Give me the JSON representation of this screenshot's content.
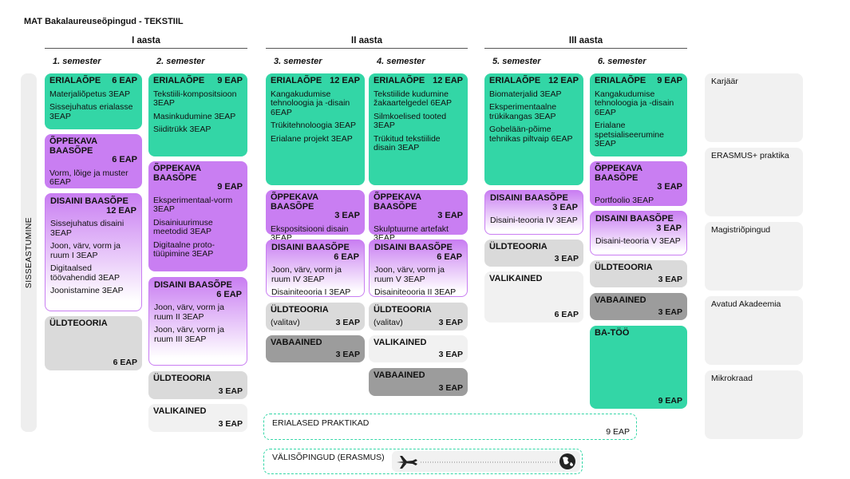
{
  "title": "MAT Bakalaureuseõpingud - TEKSTIIL",
  "admission": "SISSEASTUMINE",
  "years": [
    {
      "label": "I aasta",
      "semesters": [
        {
          "label": "1. semester",
          "blocks": [
            {
              "heading": "ERIALAÕPE",
              "eap": "6 EAP",
              "color": "#33d6a6",
              "items": [
                "Materjaliõpetus 3EAP",
                "Sissejuhatus erialasse 3EAP"
              ]
            },
            {
              "heading": "ÕPPEKAVA BAASÕPE",
              "eap": "6 EAP",
              "color": "#c97ef2",
              "items": [
                "Vorm, lõige ja muster 6EAP"
              ]
            },
            {
              "heading": "DISAINI BAASÕPE",
              "eap": "12 EAP",
              "color": "#c97ef2",
              "fade": true,
              "items": [
                "Sissejuhatus disaini 3EAP",
                "Joon, värv, vorm ja ruum I  3EAP",
                "Digitaalsed töövahendid 3EAP",
                "Joonistamine 3EAP"
              ]
            },
            {
              "heading": "ÜLDTEOORIA",
              "eap": "6 EAP",
              "color": "#dadada"
            }
          ]
        },
        {
          "label": "2. semester",
          "blocks": [
            {
              "heading": "ERIALAÕPE",
              "eap": "9 EAP",
              "color": "#33d6a6",
              "items": [
                "Tekstiili-kompositsioon 3EAP",
                "Masinkudumine 3EAP",
                "Siiditrükk 3EAP"
              ]
            },
            {
              "heading": "ÕPPEKAVA BAASÕPE",
              "eap": "9 EAP",
              "color": "#c97ef2",
              "items": [
                "Eksperimentaal-vorm 3EAP",
                "Disainiuurimuse meetodid 3EAP",
                "Digitaalne proto-tüüpimine 3EAP"
              ]
            },
            {
              "heading": "DISAINI BAASÕPE",
              "eap": "6 EAP",
              "color": "#c97ef2",
              "fade": true,
              "items": [
                "Joon, värv, vorm ja ruum II 3EAP",
                "Joon, värv, vorm ja ruum III 3EAP"
              ]
            },
            {
              "heading": "ÜLDTEOORIA",
              "eap": "3 EAP",
              "color": "#dadada"
            },
            {
              "heading": "VALIKAINED",
              "eap": "3 EAP",
              "color": "#f1f1f1"
            }
          ]
        }
      ]
    },
    {
      "label": "II aasta",
      "semesters": [
        {
          "label": "3. semester",
          "blocks": [
            {
              "heading": "ERIALAÕPE",
              "eap": "12 EAP",
              "color": "#33d6a6",
              "items": [
                "Kangakudumise tehnoloogia ja -disain 6EAP",
                "Trükitehnoloogia 3EAP",
                "Erialane projekt 3EAP"
              ]
            },
            {
              "heading": "ÕPPEKAVA BAASÕPE",
              "eap": "3 EAP",
              "color": "#c97ef2",
              "items": [
                "Ekspositsiooni disain 3EAP"
              ]
            },
            {
              "heading": "DISAINI BAASÕPE",
              "eap": "6 EAP",
              "color": "#c97ef2",
              "fade": true,
              "items": [
                "Joon, värv, vorm ja ruum IV 3EAP",
                "Disainiteooria I 3EAP"
              ]
            },
            {
              "heading": "ÜLDTEOORIA",
              "note": "(valitav)",
              "eap": "3 EAP",
              "color": "#dadada"
            },
            {
              "heading": "VABAAINED",
              "eap": "3 EAP",
              "color": "#9c9c9c"
            }
          ]
        },
        {
          "label": "4. semester",
          "blocks": [
            {
              "heading": "ERIALAÕPE",
              "eap": "12 EAP",
              "color": "#33d6a6",
              "items": [
                "Tekstiilide kudumine žakaartelgedel 6EAP",
                "Silmkoelised tooted 3EAP",
                "Trükitud tekstiilide disain 3EAP"
              ]
            },
            {
              "heading": "ÕPPEKAVA BAASÕPE",
              "eap": "3 EAP",
              "color": "#c97ef2",
              "items": [
                "Skulptuurne artefakt 3EAP"
              ]
            },
            {
              "heading": "DISAINI BAASÕPE",
              "eap": "6 EAP",
              "color": "#c97ef2",
              "fade": true,
              "items": [
                "Joon, värv, vorm ja ruum V 3EAP",
                "Disainiteooria II 3EAP"
              ]
            },
            {
              "heading": "ÜLDTEOORIA",
              "note": "(valitav)",
              "eap": "3 EAP",
              "color": "#dadada"
            },
            {
              "heading": "VALIKAINED",
              "eap": "3 EAP",
              "color": "#f1f1f1"
            },
            {
              "heading": "VABAAINED",
              "eap": "3 EAP",
              "color": "#9c9c9c"
            }
          ]
        }
      ]
    },
    {
      "label": "III aasta",
      "semesters": [
        {
          "label": "5. semester",
          "blocks": [
            {
              "heading": "ERIALAÕPE",
              "eap": "12 EAP",
              "color": "#33d6a6",
              "items": [
                "Biomaterjalid 3EAP",
                "Eksperimentaalne trükikangas 3EAP",
                "Gobelään-põime tehnikas piltvaip 6EAP"
              ]
            },
            {
              "heading": "DISAINI BAASÕPE",
              "eap": "3 EAP",
              "color": "#c97ef2",
              "fade": true,
              "items": [
                "Disaini-teooria IV 3EAP"
              ]
            },
            {
              "heading": "ÜLDTEOORIA",
              "eap": "3 EAP",
              "color": "#dadada"
            },
            {
              "heading": "VALIKAINED",
              "eap": "6 EAP",
              "color": "#f1f1f1"
            }
          ]
        },
        {
          "label": "6. semester",
          "blocks": [
            {
              "heading": "ERIALAÕPE",
              "eap": "9 EAP",
              "color": "#33d6a6",
              "items": [
                "Kangakudumise tehnoloogia ja -disain 6EAP",
                "Erialane spetsialiseerumine 3EAP"
              ]
            },
            {
              "heading": "ÕPPEKAVA BAASÕPE",
              "eap": "3 EAP",
              "color": "#c97ef2",
              "items": [
                "Portfoolio 3EAP"
              ]
            },
            {
              "heading": "DISAINI BAASÕPE",
              "eap": "3 EAP",
              "color": "#c97ef2",
              "fade": true,
              "items": [
                "Disaini-teooria V 3EAP"
              ]
            },
            {
              "heading": "ÜLDTEOORIA",
              "eap": "3 EAP",
              "color": "#dadada"
            },
            {
              "heading": "VABAAINED",
              "eap": "3 EAP",
              "color": "#9c9c9c"
            },
            {
              "heading": "BA-TÖÖ",
              "eap": "9 EAP",
              "color": "#33d6a6"
            }
          ]
        }
      ]
    }
  ],
  "practice": {
    "label": "ERIALASED PRAKTIKAD",
    "eap": "9 EAP"
  },
  "exchange": {
    "label": "VÄLISÕPINGUD (ERASMUS)"
  },
  "next_steps": [
    "Karjäär",
    "ERASMUS+ praktika",
    "Magistriõpingud",
    "Avatud Akadeemia",
    "Mikrokraad"
  ]
}
